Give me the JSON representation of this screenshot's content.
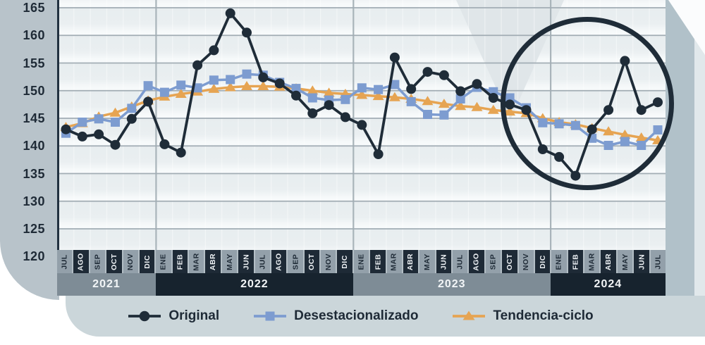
{
  "y_axis": {
    "ticks": [
      "165",
      "160",
      "155",
      "150",
      "145",
      "140",
      "135",
      "130",
      "125",
      "120"
    ]
  },
  "x_axis": {
    "months": [
      "JUL",
      "AGO",
      "SEP",
      "OCT",
      "NOV",
      "DIC",
      "ENE",
      "FEB",
      "MAR",
      "ABR",
      "MAY",
      "JUN",
      "JUL",
      "AGO",
      "SEP",
      "OCT",
      "NOV",
      "DIC",
      "ENE",
      "FEB",
      "MAR",
      "ABR",
      "MAY",
      "JUN",
      "JUL",
      "AGO",
      "SEP",
      "OCT",
      "NOV",
      "DIC",
      "ENE",
      "FEB",
      "MAR",
      "ABR",
      "MAY",
      "JUN",
      "JUL"
    ],
    "years": [
      {
        "label": "2021",
        "months": 6
      },
      {
        "label": "2022",
        "months": 12
      },
      {
        "label": "2023",
        "months": 12
      },
      {
        "label": "2024",
        "months": 7
      }
    ]
  },
  "legend": {
    "items": [
      {
        "label": "Original",
        "series": "original",
        "marker": "circle"
      },
      {
        "label": "Desestacionalizado",
        "series": "desestacionalizado",
        "marker": "square"
      },
      {
        "label": "Tendencia-ciclo",
        "series": "tendencia_ciclo",
        "marker": "triangle"
      }
    ]
  },
  "annotation": {
    "type": "circle",
    "highlight_range": "NOV 2023 - JUL 2024"
  },
  "chart_data": {
    "type": "line",
    "title": "",
    "x": [
      "JUL 2021",
      "AGO 2021",
      "SEP 2021",
      "OCT 2021",
      "NOV 2021",
      "DIC 2021",
      "ENE 2022",
      "FEB 2022",
      "MAR 2022",
      "ABR 2022",
      "MAY 2022",
      "JUN 2022",
      "JUL 2022",
      "AGO 2022",
      "SEP 2022",
      "OCT 2022",
      "NOV 2022",
      "DIC 2022",
      "ENE 2023",
      "FEB 2023",
      "MAR 2023",
      "ABR 2023",
      "MAY 2023",
      "JUN 2023",
      "JUL 2023",
      "AGO 2023",
      "SEP 2023",
      "OCT 2023",
      "NOV 2023",
      "DIC 2023",
      "ENE 2024",
      "FEB 2024",
      "MAR 2024",
      "ABR 2024",
      "MAY 2024",
      "JUN 2024",
      "JUL 2024"
    ],
    "series": [
      {
        "name": "Original",
        "values": [
          143.0,
          141.7,
          142.1,
          140.2,
          144.9,
          148.0,
          140.3,
          138.8,
          154.6,
          157.3,
          164.0,
          160.5,
          152.4,
          151.3,
          149.1,
          145.9,
          147.4,
          145.2,
          143.8,
          138.5,
          156.0,
          150.3,
          153.4,
          152.8,
          149.9,
          151.2,
          148.7,
          147.5,
          146.5,
          139.4,
          138.0,
          134.6,
          143.0,
          146.5,
          155.4,
          146.5,
          147.9
        ]
      },
      {
        "name": "Desestacionalizado",
        "values": [
          142.3,
          144.3,
          144.9,
          144.3,
          146.8,
          150.9,
          149.7,
          151.0,
          150.5,
          151.9,
          152.0,
          153.0,
          152.8,
          151.5,
          150.4,
          148.7,
          148.3,
          148.4,
          150.5,
          150.2,
          151.1,
          148.0,
          145.7,
          145.6,
          148.5,
          150.6,
          149.8,
          148.7,
          146.9,
          144.2,
          144.0,
          143.7,
          141.4,
          140.1,
          140.8,
          140.1,
          142.9
        ]
      },
      {
        "name": "Tendencia-ciclo",
        "values": [
          143.4,
          144.1,
          145.3,
          146.0,
          147.1,
          148.2,
          148.9,
          149.4,
          149.8,
          150.3,
          150.6,
          150.8,
          150.8,
          150.7,
          150.4,
          150.0,
          149.6,
          149.4,
          149.2,
          149.0,
          148.8,
          148.5,
          148.1,
          147.6,
          147.2,
          147.0,
          146.5,
          146.2,
          145.9,
          145.0,
          144.3,
          143.9,
          143.2,
          142.6,
          142.0,
          141.5,
          141.0
        ]
      }
    ],
    "ylim": [
      120,
      165
    ],
    "y_ticks": [
      120,
      125,
      130,
      135,
      140,
      145,
      150,
      155,
      160,
      165
    ],
    "grid": true,
    "legend_position": "bottom",
    "annotations": [
      {
        "type": "circle",
        "x_range": [
          "NOV 2023",
          "JUL 2024"
        ],
        "note": "circled recent period"
      }
    ]
  },
  "colors": {
    "original": "#1f2c38",
    "desestacionalizado": "#7d9cd0",
    "tendencia_ciclo": "#e6a452",
    "plot_bg": "#e9eef1",
    "gridline": "#a2adb4",
    "left_strip": "#b8c3ca",
    "legend_band": "#cbd6da",
    "month_cell_gray": "#93a0aa",
    "month_cell_dark": "#1e2a36",
    "year_band_gray": "#7e8c96",
    "year_band_dark": "#17232e",
    "annotation_circle": "#1f2c38"
  }
}
